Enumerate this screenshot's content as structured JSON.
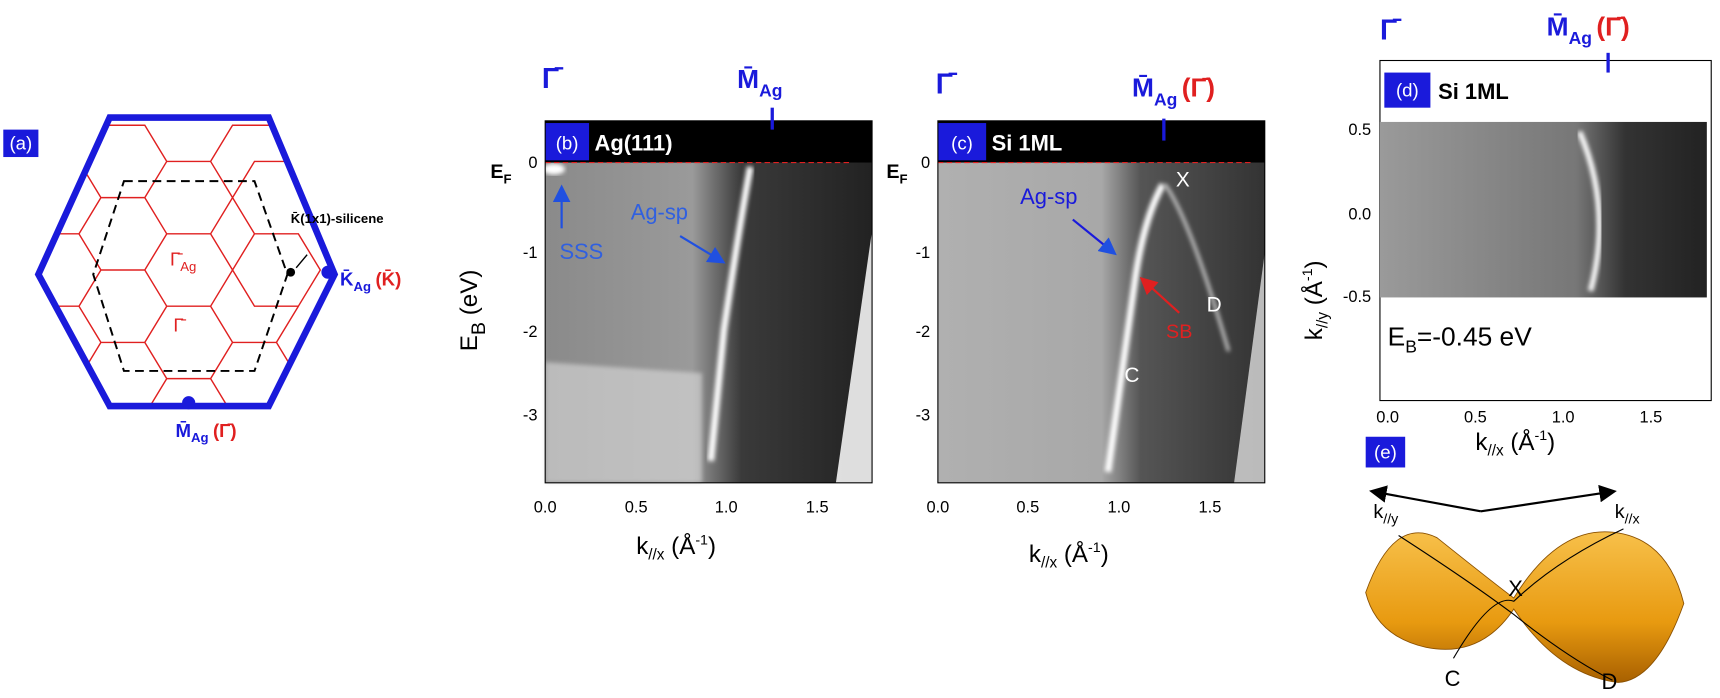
{
  "panel_a": {
    "label": "(a)",
    "gamma_ag": {
      "symbol": "Γ̄",
      "sub": "Ag"
    },
    "gamma": "Γ̄",
    "k_silicene": "K̄(1x1)-silicene",
    "k_ag": {
      "symbol": "K̄",
      "sub": "Ag",
      "paren": "(K̄)"
    },
    "m_ag": {
      "symbol": "M̄",
      "sub": "Ag",
      "paren": "(Γ̄)"
    }
  },
  "panel_b": {
    "label": "(b)",
    "title": "Ag(111)",
    "top": {
      "gamma": "Γ̄",
      "m_symbol": "M̄",
      "m_sub": "Ag"
    },
    "ef": {
      "symbol": "E",
      "sub": "F"
    },
    "ylabel": {
      "symbol": "E",
      "sub": "B",
      "unit": " (eV)"
    },
    "yticks": [
      "0",
      "-1",
      "-2",
      "-3"
    ],
    "xticks": [
      "0.0",
      "0.5",
      "1.0",
      "1.5"
    ],
    "xlabel": {
      "symbol": "k",
      "sub": "//x",
      "unit": " (Å",
      "exp": "-1",
      "close": ")"
    },
    "annotations": [
      "SSS",
      "Ag-sp"
    ]
  },
  "panel_c": {
    "label": "(c)",
    "title": "Si 1ML",
    "top": {
      "gamma": "Γ̄",
      "m_symbol": "M̄",
      "m_sub": "Ag",
      "paren": "(Γ̄)"
    },
    "ef": {
      "symbol": "E",
      "sub": "F"
    },
    "yticks": [
      "0",
      "-1",
      "-2",
      "-3"
    ],
    "xticks": [
      "0.0",
      "0.5",
      "1.0",
      "1.5"
    ],
    "xlabel": {
      "symbol": "k",
      "sub": "//x",
      "unit": " (Å",
      "exp": "-1",
      "close": ")"
    },
    "annotations": [
      "Ag-sp",
      "SB",
      "X",
      "D",
      "C"
    ]
  },
  "panel_d": {
    "label": "(d)",
    "title": "Si 1ML",
    "top": {
      "gamma": "Γ̄",
      "m_symbol": "M̄",
      "m_sub": "Ag",
      "paren": "(Γ̄)"
    },
    "ylabel": {
      "symbol": "k",
      "sub": "//y",
      "unit": " (Å",
      "exp": "-1",
      "close": ")"
    },
    "yticks": [
      "0.5",
      "0.0",
      "-0.5"
    ],
    "xticks": [
      "0.0",
      "0.5",
      "1.0",
      "1.5"
    ],
    "xlabel": {
      "symbol": "k",
      "sub": "//x",
      "unit": " (Å",
      "exp": "-1",
      "close": ")"
    },
    "energy": {
      "symbol": "E",
      "sub": "B",
      "value": "=-0.45 eV"
    }
  },
  "panel_e": {
    "label": "(e)",
    "axis_y": {
      "symbol": "k",
      "sub": "//y"
    },
    "axis_x": {
      "symbol": "k",
      "sub": "//x"
    },
    "points": [
      "X",
      "C",
      "D"
    ]
  }
}
